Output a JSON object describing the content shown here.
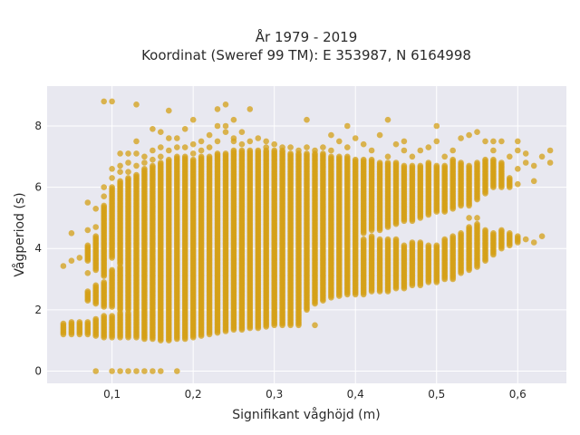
{
  "chart_data": {
    "type": "scatter",
    "title_line1": "År 1979 - 2019",
    "title_line2": "Koordinat (Sweref 99 TM): E 353987, N 6164998",
    "xlabel": "Signifikant våghöjd (m)",
    "ylabel": "Vågperiod (s)",
    "xlim": [
      0.02,
      0.66
    ],
    "ylim": [
      -0.4,
      9.3
    ],
    "x_ticks": [
      0.1,
      0.2,
      0.3,
      0.4,
      0.5,
      0.6
    ],
    "x_tick_labels": [
      "0,1",
      "0,2",
      "0,3",
      "0,4",
      "0,5",
      "0,6"
    ],
    "y_ticks": [
      0,
      2,
      4,
      6,
      8
    ],
    "y_tick_labels": [
      "0",
      "2",
      "4",
      "6",
      "8"
    ],
    "grid": true,
    "colors": {
      "marker": "#D4A017",
      "plot_bg": "#E8E8F0",
      "grid": "#ffffff"
    },
    "x_step": 0.01,
    "y_step": 0.05,
    "columns": [
      {
        "x": 0.04,
        "bands": [
          [
            1.2,
            1.55
          ]
        ],
        "points": [
          [
            0.04,
            3.43
          ]
        ]
      },
      {
        "x": 0.05,
        "bands": [
          [
            1.2,
            1.6
          ]
        ],
        "points": [
          [
            0.05,
            3.6
          ],
          [
            0.05,
            4.5
          ]
        ]
      },
      {
        "x": 0.06,
        "bands": [
          [
            1.2,
            1.6
          ]
        ],
        "points": [
          [
            0.06,
            3.7
          ]
        ]
      },
      {
        "x": 0.07,
        "bands": [
          [
            1.2,
            1.6
          ],
          [
            2.3,
            2.6
          ],
          [
            3.6,
            4.1
          ]
        ],
        "points": [
          [
            0.07,
            5.5
          ],
          [
            0.07,
            4.6
          ],
          [
            0.07,
            3.2
          ]
        ]
      },
      {
        "x": 0.08,
        "bands": [
          [
            1.15,
            1.7
          ],
          [
            2.2,
            2.8
          ],
          [
            3.3,
            4.4
          ]
        ],
        "points": [
          [
            0.08,
            0.0
          ],
          [
            0.08,
            5.3
          ],
          [
            0.08,
            4.7
          ]
        ]
      },
      {
        "x": 0.09,
        "bands": [
          [
            1.1,
            1.8
          ],
          [
            2.1,
            2.9
          ],
          [
            3.1,
            5.4
          ]
        ],
        "points": [
          [
            0.09,
            8.8
          ],
          [
            0.09,
            6.0
          ],
          [
            0.09,
            5.7
          ]
        ]
      },
      {
        "x": 0.1,
        "bands": [
          [
            1.1,
            1.8
          ],
          [
            2.1,
            3.3
          ],
          [
            3.7,
            6.0
          ]
        ],
        "points": [
          [
            0.1,
            0.0
          ],
          [
            0.1,
            8.8
          ],
          [
            0.1,
            6.6
          ],
          [
            0.1,
            6.3
          ]
        ]
      },
      {
        "x": 0.11,
        "bands": [
          [
            1.1,
            1.9
          ],
          [
            2.0,
            3.4
          ],
          [
            3.5,
            6.2
          ]
        ],
        "points": [
          [
            0.11,
            0.0
          ],
          [
            0.11,
            7.1
          ],
          [
            0.11,
            6.7
          ],
          [
            0.11,
            6.5
          ]
        ]
      },
      {
        "x": 0.12,
        "bands": [
          [
            1.1,
            1.9
          ],
          [
            2.0,
            6.3
          ]
        ],
        "points": [
          [
            0.12,
            0.0
          ],
          [
            0.12,
            6.8
          ],
          [
            0.12,
            7.1
          ],
          [
            0.12,
            6.5
          ]
        ]
      },
      {
        "x": 0.13,
        "bands": [
          [
            1.1,
            6.4
          ]
        ],
        "points": [
          [
            0.13,
            0.0
          ],
          [
            0.13,
            8.7
          ],
          [
            0.13,
            7.5
          ],
          [
            0.13,
            7.1
          ],
          [
            0.13,
            6.7
          ]
        ]
      },
      {
        "x": 0.14,
        "bands": [
          [
            1.05,
            6.6
          ]
        ],
        "points": [
          [
            0.14,
            0.0
          ],
          [
            0.14,
            6.8
          ],
          [
            0.14,
            7.0
          ]
        ]
      },
      {
        "x": 0.15,
        "bands": [
          [
            1.05,
            6.7
          ]
        ],
        "points": [
          [
            0.15,
            0.0
          ],
          [
            0.15,
            7.9
          ],
          [
            0.15,
            7.2
          ],
          [
            0.15,
            6.9
          ]
        ]
      },
      {
        "x": 0.16,
        "bands": [
          [
            1.0,
            6.8
          ]
        ],
        "points": [
          [
            0.16,
            0.0
          ],
          [
            0.16,
            7.8
          ],
          [
            0.16,
            7.3
          ],
          [
            0.16,
            7.0
          ]
        ]
      },
      {
        "x": 0.17,
        "bands": [
          [
            1.0,
            6.9
          ]
        ],
        "points": [
          [
            0.17,
            8.5
          ],
          [
            0.17,
            7.6
          ],
          [
            0.17,
            7.2
          ]
        ]
      },
      {
        "x": 0.18,
        "bands": [
          [
            1.05,
            7.0
          ]
        ],
        "points": [
          [
            0.18,
            0.0
          ],
          [
            0.18,
            7.3
          ],
          [
            0.18,
            7.6
          ]
        ]
      },
      {
        "x": 0.19,
        "bands": [
          [
            1.05,
            7.0
          ]
        ],
        "points": [
          [
            0.19,
            7.9
          ],
          [
            0.19,
            7.3
          ]
        ]
      },
      {
        "x": 0.2,
        "bands": [
          [
            1.1,
            6.9
          ]
        ],
        "points": [
          [
            0.2,
            8.2
          ],
          [
            0.2,
            7.4
          ],
          [
            0.2,
            7.1
          ]
        ]
      },
      {
        "x": 0.21,
        "bands": [
          [
            1.15,
            7.0
          ]
        ],
        "points": [
          [
            0.21,
            7.5
          ],
          [
            0.21,
            7.2
          ]
        ]
      },
      {
        "x": 0.22,
        "bands": [
          [
            1.2,
            7.0
          ]
        ],
        "points": [
          [
            0.22,
            7.7
          ],
          [
            0.22,
            7.3
          ]
        ]
      },
      {
        "x": 0.23,
        "bands": [
          [
            1.25,
            7.1
          ]
        ],
        "points": [
          [
            0.23,
            8.55
          ],
          [
            0.23,
            8.0
          ],
          [
            0.23,
            7.5
          ]
        ]
      },
      {
        "x": 0.24,
        "bands": [
          [
            1.3,
            7.1
          ]
        ],
        "points": [
          [
            0.24,
            8.7
          ],
          [
            0.24,
            8.0
          ],
          [
            0.24,
            7.8
          ]
        ]
      },
      {
        "x": 0.25,
        "bands": [
          [
            1.35,
            7.2
          ]
        ],
        "points": [
          [
            0.25,
            8.2
          ],
          [
            0.25,
            7.5
          ],
          [
            0.25,
            7.6
          ]
        ]
      },
      {
        "x": 0.26,
        "bands": [
          [
            1.35,
            7.2
          ]
        ],
        "points": [
          [
            0.26,
            7.8
          ],
          [
            0.26,
            7.4
          ]
        ]
      },
      {
        "x": 0.27,
        "bands": [
          [
            1.4,
            7.2
          ]
        ],
        "points": [
          [
            0.27,
            8.55
          ],
          [
            0.27,
            7.5
          ]
        ]
      },
      {
        "x": 0.28,
        "bands": [
          [
            1.4,
            7.2
          ]
        ],
        "points": [
          [
            0.28,
            7.6
          ]
        ]
      },
      {
        "x": 0.29,
        "bands": [
          [
            1.45,
            7.2
          ]
        ],
        "points": [
          [
            0.29,
            7.5
          ],
          [
            0.29,
            7.3
          ]
        ]
      },
      {
        "x": 0.3,
        "bands": [
          [
            1.5,
            7.2
          ]
        ],
        "points": [
          [
            0.3,
            7.4
          ]
        ]
      },
      {
        "x": 0.31,
        "bands": [
          [
            1.5,
            7.2
          ]
        ],
        "points": [
          [
            0.31,
            7.3
          ]
        ]
      },
      {
        "x": 0.32,
        "bands": [
          [
            1.5,
            7.1
          ]
        ],
        "points": [
          [
            0.32,
            7.3
          ]
        ]
      },
      {
        "x": 0.33,
        "bands": [
          [
            1.5,
            7.1
          ]
        ],
        "points": [
          [
            0.33,
            7.2
          ]
        ]
      },
      {
        "x": 0.34,
        "bands": [
          [
            2.0,
            7.1
          ]
        ],
        "points": [
          [
            0.34,
            8.2
          ],
          [
            0.34,
            7.3
          ]
        ]
      },
      {
        "x": 0.35,
        "bands": [
          [
            2.2,
            7.1
          ]
        ],
        "points": [
          [
            0.35,
            7.2
          ],
          [
            0.35,
            1.5
          ]
        ]
      },
      {
        "x": 0.36,
        "bands": [
          [
            2.3,
            7.1
          ]
        ],
        "points": [
          [
            0.36,
            7.3
          ]
        ]
      },
      {
        "x": 0.37,
        "bands": [
          [
            2.4,
            7.0
          ]
        ],
        "points": [
          [
            0.37,
            7.7
          ],
          [
            0.37,
            7.2
          ]
        ]
      },
      {
        "x": 0.38,
        "bands": [
          [
            2.45,
            7.0
          ]
        ],
        "points": [
          [
            0.38,
            7.5
          ]
        ]
      },
      {
        "x": 0.39,
        "bands": [
          [
            2.5,
            7.0
          ]
        ],
        "points": [
          [
            0.39,
            8.0
          ],
          [
            0.39,
            7.3
          ]
        ]
      },
      {
        "x": 0.4,
        "bands": [
          [
            2.5,
            6.9
          ]
        ],
        "points": [
          [
            0.4,
            7.6
          ]
        ]
      },
      {
        "x": 0.41,
        "bands": [
          [
            2.5,
            4.3
          ],
          [
            4.5,
            6.9
          ]
        ],
        "points": [
          [
            0.41,
            7.4
          ]
        ]
      },
      {
        "x": 0.42,
        "bands": [
          [
            2.6,
            4.4
          ],
          [
            4.6,
            6.9
          ]
        ],
        "points": [
          [
            0.42,
            7.2
          ]
        ]
      },
      {
        "x": 0.43,
        "bands": [
          [
            2.6,
            4.3
          ],
          [
            4.6,
            6.8
          ]
        ],
        "points": [
          [
            0.43,
            7.7
          ]
        ]
      },
      {
        "x": 0.44,
        "bands": [
          [
            2.6,
            4.3
          ],
          [
            4.7,
            6.8
          ]
        ],
        "points": [
          [
            0.44,
            8.2
          ],
          [
            0.44,
            7.0
          ]
        ]
      },
      {
        "x": 0.45,
        "bands": [
          [
            2.7,
            4.3
          ],
          [
            4.8,
            6.8
          ]
        ],
        "points": [
          [
            0.45,
            7.4
          ]
        ]
      },
      {
        "x": 0.46,
        "bands": [
          [
            2.7,
            4.1
          ],
          [
            4.9,
            6.7
          ]
        ],
        "points": [
          [
            0.46,
            7.5
          ],
          [
            0.46,
            7.2
          ]
        ]
      },
      {
        "x": 0.47,
        "bands": [
          [
            2.8,
            4.2
          ],
          [
            4.9,
            6.7
          ]
        ],
        "points": [
          [
            0.47,
            7.0
          ]
        ]
      },
      {
        "x": 0.48,
        "bands": [
          [
            2.8,
            4.2
          ],
          [
            5.0,
            6.7
          ]
        ],
        "points": [
          [
            0.48,
            7.2
          ]
        ]
      },
      {
        "x": 0.49,
        "bands": [
          [
            2.9,
            4.1
          ],
          [
            5.1,
            6.8
          ]
        ],
        "points": [
          [
            0.49,
            7.3
          ]
        ]
      },
      {
        "x": 0.5,
        "bands": [
          [
            2.9,
            4.1
          ],
          [
            5.2,
            6.7
          ]
        ],
        "points": [
          [
            0.5,
            8.0
          ],
          [
            0.5,
            7.5
          ]
        ]
      },
      {
        "x": 0.51,
        "bands": [
          [
            3.0,
            4.3
          ],
          [
            5.2,
            6.7
          ]
        ],
        "points": [
          [
            0.51,
            7.0
          ]
        ]
      },
      {
        "x": 0.52,
        "bands": [
          [
            3.0,
            4.4
          ],
          [
            5.3,
            6.9
          ]
        ],
        "points": [
          [
            0.52,
            7.2
          ]
        ]
      },
      {
        "x": 0.53,
        "bands": [
          [
            3.2,
            4.5
          ],
          [
            5.4,
            6.8
          ]
        ],
        "points": [
          [
            0.53,
            7.6
          ]
        ]
      },
      {
        "x": 0.54,
        "bands": [
          [
            3.3,
            4.7
          ],
          [
            5.4,
            6.7
          ]
        ],
        "points": [
          [
            0.54,
            7.7
          ],
          [
            0.54,
            5.0
          ]
        ]
      },
      {
        "x": 0.55,
        "bands": [
          [
            3.4,
            4.8
          ],
          [
            5.6,
            6.8
          ]
        ],
        "points": [
          [
            0.55,
            7.8
          ],
          [
            0.55,
            5.0
          ]
        ]
      },
      {
        "x": 0.56,
        "bands": [
          [
            3.6,
            4.6
          ],
          [
            5.8,
            6.9
          ]
        ],
        "points": [
          [
            0.56,
            7.5
          ]
        ]
      },
      {
        "x": 0.57,
        "bands": [
          [
            3.8,
            4.5
          ],
          [
            6.0,
            6.9
          ]
        ],
        "points": [
          [
            0.57,
            7.2
          ],
          [
            0.57,
            7.5
          ]
        ]
      },
      {
        "x": 0.58,
        "bands": [
          [
            4.0,
            4.6
          ],
          [
            6.0,
            6.8
          ]
        ],
        "points": [
          [
            0.58,
            7.5
          ]
        ]
      },
      {
        "x": 0.59,
        "bands": [
          [
            4.1,
            4.5
          ],
          [
            6.0,
            6.3
          ]
        ],
        "points": [
          [
            0.59,
            7.0
          ]
        ]
      },
      {
        "x": 0.6,
        "bands": [
          [
            4.2,
            4.4
          ]
        ],
        "points": [
          [
            0.6,
            7.2
          ],
          [
            0.6,
            6.6
          ],
          [
            0.6,
            6.1
          ],
          [
            0.6,
            7.5
          ]
        ]
      },
      {
        "x": 0.61,
        "bands": [],
        "points": [
          [
            0.61,
            7.1
          ],
          [
            0.61,
            6.8
          ],
          [
            0.61,
            4.3
          ]
        ]
      },
      {
        "x": 0.62,
        "bands": [],
        "points": [
          [
            0.62,
            6.7
          ],
          [
            0.62,
            6.2
          ],
          [
            0.62,
            4.2
          ]
        ]
      },
      {
        "x": 0.63,
        "bands": [],
        "points": [
          [
            0.63,
            7.0
          ],
          [
            0.63,
            4.4
          ]
        ]
      },
      {
        "x": 0.64,
        "bands": [],
        "points": [
          [
            0.64,
            7.2
          ],
          [
            0.64,
            6.8
          ]
        ]
      }
    ]
  }
}
